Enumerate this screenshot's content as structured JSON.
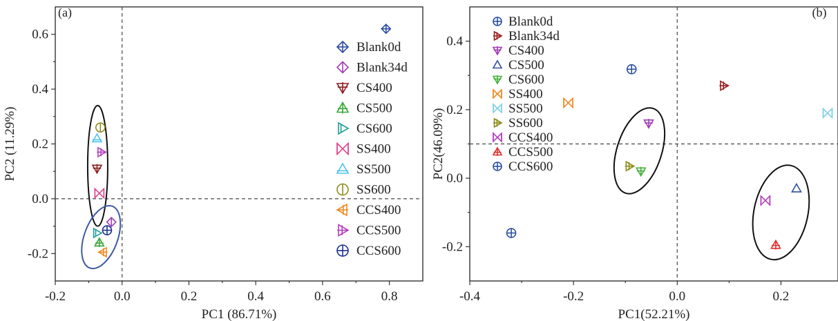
{
  "chart_data": [
    {
      "type": "scatter",
      "panel_label": "(a)",
      "xlabel": "PC1 (86.71%)",
      "ylabel": "PC2 (11.29%)",
      "xlim": [
        -0.2,
        0.9
      ],
      "ylim": [
        -0.3,
        0.7
      ],
      "xticks": [
        -0.2,
        0.0,
        0.2,
        0.4,
        0.6,
        0.8
      ],
      "yticks": [
        -0.2,
        0.0,
        0.2,
        0.4,
        0.6
      ],
      "reference_lines": {
        "x": 0.0,
        "y": 0.0
      },
      "legend_placement": "right",
      "series": [
        {
          "name": "Blank0d",
          "color": "#2d4fa0",
          "marker": "diamond-cross",
          "x": 0.79,
          "y": 0.62
        },
        {
          "name": "Blank34d",
          "color": "#a23cb4",
          "marker": "diamond-half",
          "x": -0.032,
          "y": -0.085
        },
        {
          "name": "CS400",
          "color": "#8b1e1e",
          "marker": "tri-down-cross",
          "x": -0.075,
          "y": 0.11
        },
        {
          "name": "CS500",
          "color": "#3aa63a",
          "marker": "tri-up-cross",
          "x": -0.068,
          "y": -0.16
        },
        {
          "name": "CS600",
          "color": "#1b9a9a",
          "marker": "tri-right-bar",
          "x": -0.075,
          "y": -0.125
        },
        {
          "name": "SS400",
          "color": "#e0458f",
          "marker": "bowtie",
          "x": -0.068,
          "y": 0.02
        },
        {
          "name": "SS500",
          "color": "#4fc3e8",
          "marker": "tri-up-bar",
          "x": -0.075,
          "y": 0.22
        },
        {
          "name": "SS600",
          "color": "#8c8c1a",
          "marker": "circle-vbar",
          "x": -0.065,
          "y": 0.26
        },
        {
          "name": "CCS400",
          "color": "#f08a24",
          "marker": "tri-left-cross",
          "x": -0.057,
          "y": -0.195
        },
        {
          "name": "CCS500",
          "color": "#b53fbf",
          "marker": "tri-right-cross",
          "x": -0.062,
          "y": 0.17
        },
        {
          "name": "CCS600",
          "color": "#1a2f8a",
          "marker": "circle-cross",
          "x": -0.045,
          "y": -0.115
        }
      ],
      "ellipses": [
        {
          "cx": -0.073,
          "cy": 0.12,
          "rx": 0.03,
          "ry": 0.22,
          "angle": 0,
          "color": "#111111"
        },
        {
          "cx": -0.063,
          "cy": -0.14,
          "rx": 0.05,
          "ry": 0.12,
          "angle": 20,
          "color": "#3c5aa0"
        }
      ]
    },
    {
      "type": "scatter",
      "panel_label": "(b)",
      "xlabel": "PC1(52.21%)",
      "ylabel": "PC2(46.09%)",
      "xlim": [
        -0.4,
        0.31
      ],
      "ylim": [
        -0.3,
        0.5
      ],
      "xticks": [
        -0.4,
        -0.2,
        0.0,
        0.2
      ],
      "yticks": [
        -0.2,
        0.0,
        0.2,
        0.4
      ],
      "reference_lines": {
        "x": 0.0,
        "y": 0.1
      },
      "legend_placement": "top-left",
      "series": [
        {
          "name": "Blank0d",
          "color": "#2d4fa0",
          "marker": "circle-cross",
          "x": -0.32,
          "y": -0.16
        },
        {
          "name": "Blank34d",
          "color": "#9a1c1c",
          "marker": "tri-right-cross",
          "x": 0.09,
          "y": 0.27
        },
        {
          "name": "CS400",
          "color": "#a23cb4",
          "marker": "tri-down-cross",
          "x": -0.055,
          "y": 0.16
        },
        {
          "name": "CS500",
          "color": "#2d4fa0",
          "marker": "tri-up-open",
          "x": 0.23,
          "y": -0.03
        },
        {
          "name": "CS600",
          "color": "#46b03c",
          "marker": "tri-down-cross",
          "x": -0.07,
          "y": 0.02
        },
        {
          "name": "SS400",
          "color": "#f08a24",
          "marker": "bowtie",
          "x": -0.21,
          "y": 0.22
        },
        {
          "name": "SS500",
          "color": "#7ed2e6",
          "marker": "bowtie",
          "x": 0.29,
          "y": 0.19
        },
        {
          "name": "SS600",
          "color": "#8c8c1a",
          "marker": "tri-right-cross",
          "x": -0.092,
          "y": 0.035
        },
        {
          "name": "CCS400",
          "color": "#b53fbf",
          "marker": "bowtie",
          "x": 0.17,
          "y": -0.065
        },
        {
          "name": "CCS500",
          "color": "#e03030",
          "marker": "tri-up-cross",
          "x": 0.19,
          "y": -0.195
        },
        {
          "name": "CCS600",
          "color": "#2d4fa0",
          "marker": "circle-cross",
          "x": -0.088,
          "y": 0.318
        }
      ],
      "ellipses": [
        {
          "cx": -0.073,
          "cy": 0.08,
          "rx": 0.043,
          "ry": 0.13,
          "angle": 18,
          "color": "#111111"
        },
        {
          "cx": 0.2,
          "cy": -0.1,
          "rx": 0.052,
          "ry": 0.14,
          "angle": 12,
          "color": "#111111"
        }
      ]
    }
  ]
}
